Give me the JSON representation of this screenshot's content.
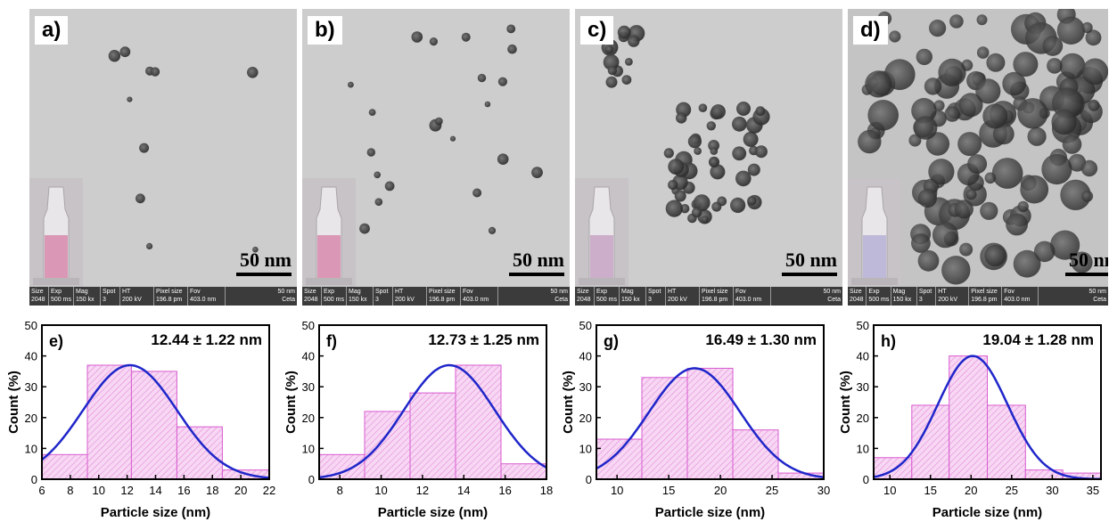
{
  "tem_panels": [
    {
      "label": "a)",
      "scale": "50 nm",
      "tint": "#d98fb0",
      "particles": 10
    },
    {
      "label": "b)",
      "scale": "50 nm",
      "tint": "#d98fb0",
      "particles": 22
    },
    {
      "label": "c)",
      "scale": "50 nm",
      "tint": "#c9a7c6",
      "particles": 60
    },
    {
      "label": "d)",
      "scale": "50 nm",
      "tint": "#b9b4d6",
      "particles": 120
    }
  ],
  "meta": {
    "headers": [
      "Size",
      "Exp",
      "Mag",
      "Spot",
      "HT",
      "Pixel size",
      "Fov",
      "50 nm"
    ],
    "values": [
      "2048",
      "500 ms",
      "150 kx",
      "3",
      "200 kV",
      "196.8 pm",
      "403.0 nm",
      "Ceta"
    ]
  },
  "chart_data": [
    {
      "type": "bar",
      "label": "e)",
      "annotation": "12.44 ± 1.22 nm",
      "xlabel": "Particle size (nm)",
      "ylabel": "Count (%)",
      "xlim": [
        6,
        22
      ],
      "ylim": [
        0,
        50
      ],
      "xticks": [
        6,
        8,
        10,
        12,
        14,
        16,
        18,
        20,
        22
      ],
      "yticks": [
        0,
        10,
        20,
        30,
        40,
        50
      ],
      "bins": [
        [
          6,
          9.2,
          8
        ],
        [
          9.2,
          12.3,
          37
        ],
        [
          12.3,
          15.5,
          35
        ],
        [
          15.5,
          18.7,
          17
        ],
        [
          18.7,
          22,
          3
        ]
      ],
      "fit": {
        "mu": 12.2,
        "sigma": 3.3,
        "peak": 37
      }
    },
    {
      "type": "bar",
      "label": "f)",
      "annotation": "12.73 ± 1.25 nm",
      "xlabel": "Particle size (nm)",
      "ylabel": "Count (%)",
      "xlim": [
        7,
        18
      ],
      "ylim": [
        0,
        50
      ],
      "xticks": [
        8,
        10,
        12,
        14,
        16,
        18
      ],
      "yticks": [
        0,
        10,
        20,
        30,
        40,
        50
      ],
      "bins": [
        [
          7,
          9.2,
          8
        ],
        [
          9.2,
          11.4,
          22
        ],
        [
          11.4,
          13.6,
          28
        ],
        [
          13.6,
          15.8,
          37
        ],
        [
          15.8,
          18,
          5
        ]
      ],
      "fit": {
        "mu": 13.3,
        "sigma": 2.2,
        "peak": 37
      }
    },
    {
      "type": "bar",
      "label": "g)",
      "annotation": "16.49 ± 1.30 nm",
      "xlabel": "Particle size (nm)",
      "ylabel": "Count (%)",
      "xlim": [
        8,
        30
      ],
      "ylim": [
        0,
        50
      ],
      "xticks": [
        10,
        15,
        20,
        25,
        30
      ],
      "yticks": [
        0,
        10,
        20,
        30,
        40,
        50
      ],
      "bins": [
        [
          8,
          12.4,
          13
        ],
        [
          12.4,
          16.8,
          33
        ],
        [
          16.8,
          21.2,
          36
        ],
        [
          21.2,
          25.6,
          16
        ],
        [
          25.6,
          30,
          2
        ]
      ],
      "fit": {
        "mu": 17.5,
        "sigma": 4.4,
        "peak": 36
      }
    },
    {
      "type": "bar",
      "label": "h)",
      "annotation": "19.04 ± 1.28 nm",
      "xlabel": "Particle size (nm)",
      "ylabel": "Count (%)",
      "xlim": [
        8,
        36
      ],
      "ylim": [
        0,
        50
      ],
      "xticks": [
        10,
        15,
        20,
        25,
        30,
        35
      ],
      "yticks": [
        0,
        10,
        20,
        30,
        40,
        50
      ],
      "bins": [
        [
          8,
          12.7,
          7
        ],
        [
          12.7,
          17.3,
          24
        ],
        [
          17.3,
          22,
          40
        ],
        [
          22,
          26.7,
          24
        ],
        [
          26.7,
          31.3,
          3
        ],
        [
          31.3,
          36,
          2
        ]
      ],
      "fit": {
        "mu": 20.2,
        "sigma": 4.3,
        "peak": 40
      }
    }
  ]
}
